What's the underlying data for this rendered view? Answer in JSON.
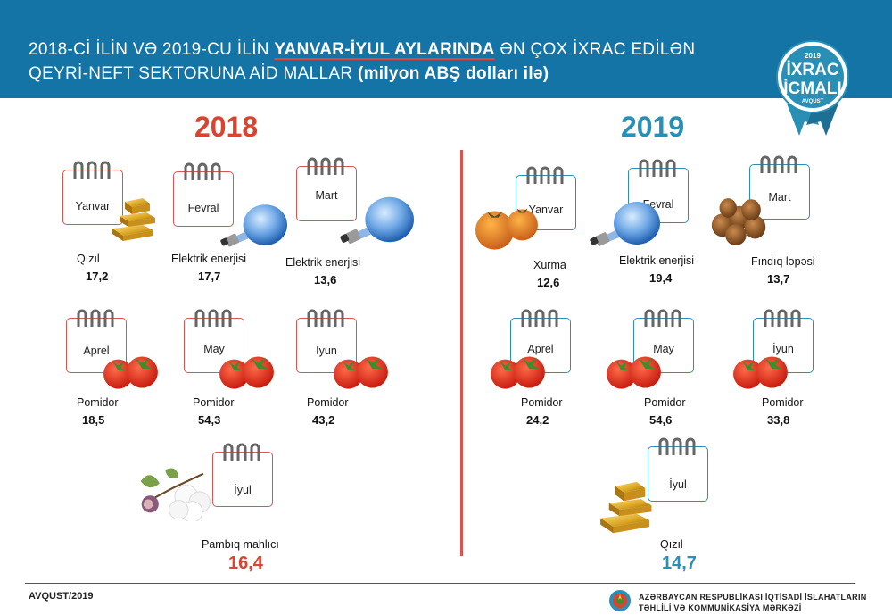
{
  "header": {
    "line1_a": "2018-Cİ İLİN VƏ 2019-CU İLİN ",
    "line1_b": "YANVAR-İYUL AYLARINDA",
    "line1_c": " ƏN ÇOX İXRAC EDİLƏN",
    "line2_a": "QEYRİ-NEFT SEKTORUNA AİD MALLAR ",
    "line2_b": "(milyon ABŞ dolları ilə)",
    "bg_color": "#1474a6"
  },
  "badge": {
    "year": "2019",
    "line1": "İXRAC",
    "line2": "İCMALI",
    "month": "AVQUST"
  },
  "y2018": {
    "heading": "2018",
    "items": [
      {
        "month": "Yanvar",
        "product": "Qızıl",
        "value": "17,2",
        "icon": "gold-bars-icon"
      },
      {
        "month": "Fevral",
        "product": "Elektrik enerjisi",
        "value": "17,7",
        "icon": "light-bulb-icon"
      },
      {
        "month": "Mart",
        "product": "Elektrik enerjisi",
        "value": "13,6",
        "icon": "light-bulb-icon"
      },
      {
        "month": "Aprel",
        "product": "Pomidor",
        "value": "18,5",
        "icon": "tomato-icon"
      },
      {
        "month": "May",
        "product": "Pomidor",
        "value": "54,3",
        "icon": "tomato-icon"
      },
      {
        "month": "İyun",
        "product": "Pomidor",
        "value": "43,2",
        "icon": "tomato-icon"
      },
      {
        "month": "İyul",
        "product": "Pambıq mahlıcı",
        "value": "16,4",
        "icon": "cotton-icon"
      }
    ]
  },
  "y2019": {
    "heading": "2019",
    "items": [
      {
        "month": "Yanvar",
        "product": "Xurma",
        "value": "12,6",
        "icon": "persimmon-icon"
      },
      {
        "month": "Fevral",
        "product": "Elektrik enerjisi",
        "value": "19,4",
        "icon": "light-bulb-icon"
      },
      {
        "month": "Mart",
        "product": "Fındıq ləpəsi",
        "value": "13,7",
        "icon": "hazelnut-icon"
      },
      {
        "month": "Aprel",
        "product": "Pomidor",
        "value": "24,2",
        "icon": "tomato-icon"
      },
      {
        "month": "May",
        "product": "Pomidor",
        "value": "54,6",
        "icon": "tomato-icon"
      },
      {
        "month": "İyun",
        "product": "Pomidor",
        "value": "33,8",
        "icon": "tomato-icon"
      },
      {
        "month": "İyul",
        "product": "Qızıl",
        "value": "14,7",
        "icon": "gold-bars-icon"
      }
    ]
  },
  "footer": {
    "date": "AVQUST/2019",
    "org_line1": "AZƏRBAYCAN RESPUBLİKASI İQTİSADİ İSLAHATLARIN",
    "org_line2": "TƏHLİLİ VƏ KOMMUNİKASİYA MƏRKƏZİ"
  },
  "colors": {
    "red": "#d9432f",
    "blue": "#2a8fb5"
  }
}
